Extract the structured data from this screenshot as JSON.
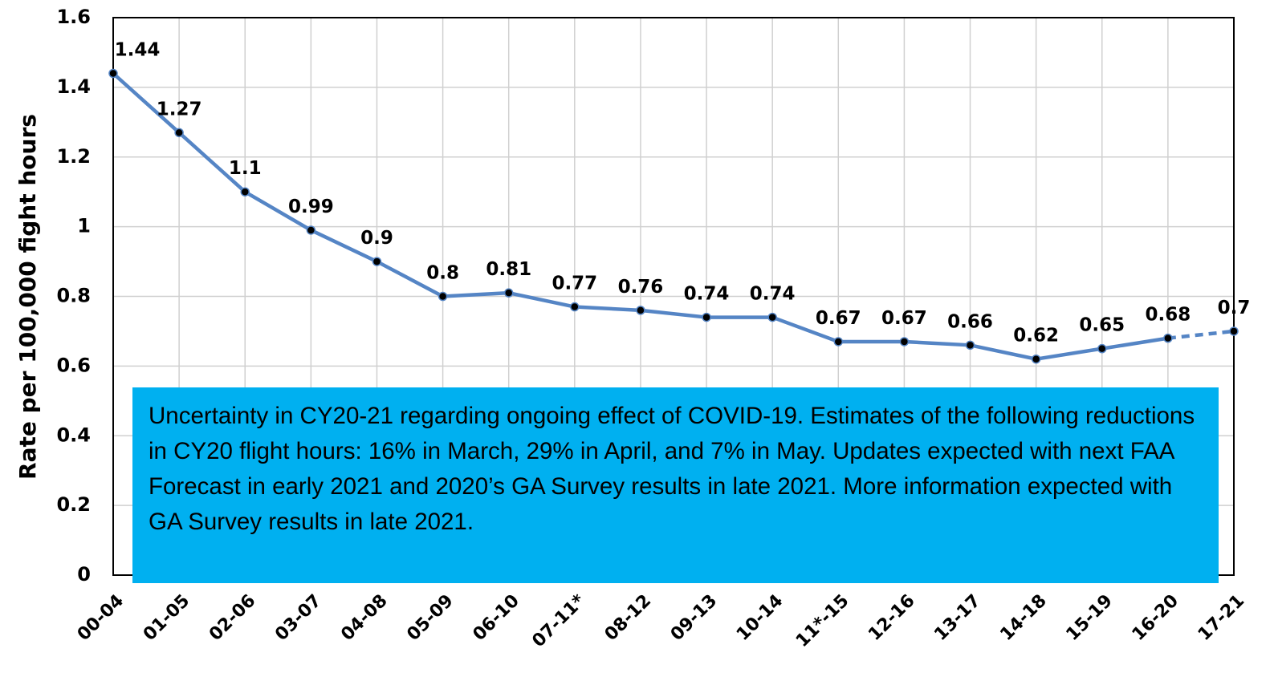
{
  "chart_data": {
    "type": "line",
    "y_label": "Rate per 100,000 fight hours",
    "categories": [
      "00-04",
      "01-05",
      "02-06",
      "03-07",
      "04-08",
      "05-09",
      "06-10",
      "07-11*",
      "08-12",
      "09-13",
      "10-14",
      "11*-15",
      "12-16",
      "13-17",
      "14-18",
      "15-19",
      "16-20",
      "17-21"
    ],
    "values": [
      1.44,
      1.27,
      1.1,
      0.99,
      0.9,
      0.8,
      0.81,
      0.77,
      0.76,
      0.74,
      0.74,
      0.67,
      0.67,
      0.66,
      0.62,
      0.65,
      0.68,
      0.7
    ],
    "color": "#5585c5",
    "marker_color": "#000000",
    "dash_from_index": 16,
    "ylim": [
      0,
      1.6
    ],
    "yticks": [
      0,
      0.2,
      0.4,
      0.6,
      0.8,
      1,
      1.2,
      1.4,
      1.6
    ],
    "grid": true,
    "data_labels": true,
    "annotation": "Uncertainty in CY20-21 regarding ongoing effect of COVID-19. Estimates of the following reductions in CY20 flight hours: 16% in March, 29% in April, and 7% in May. Updates expected with next FAA Forecast in early 2021 and 2020’s GA Survey results in late 2021. More information expected with GA Survey results in late 2021."
  }
}
